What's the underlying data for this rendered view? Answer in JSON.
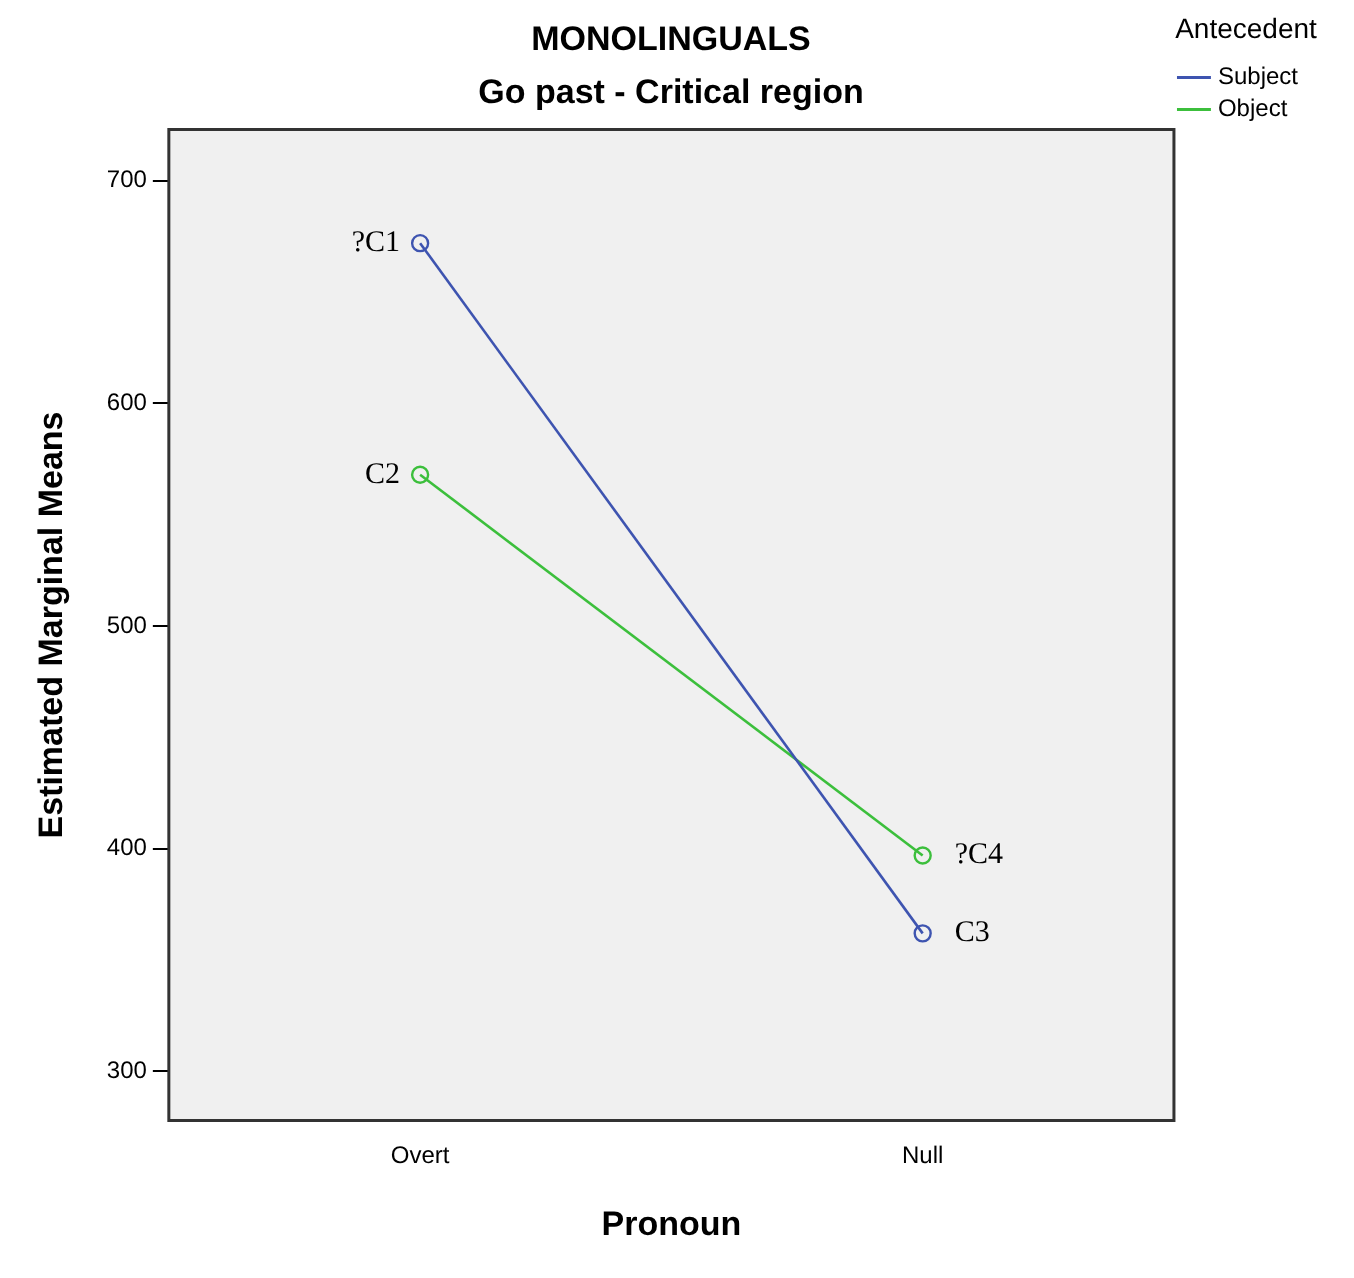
{
  "chart_data": {
    "type": "line",
    "title": "MONOLINGUALS",
    "subtitle": "Go past - Critical region",
    "xlabel": "Pronoun",
    "ylabel": "Estimated Marginal Means",
    "legend_title": "Antecedent",
    "categories": [
      "Overt",
      "Null"
    ],
    "series": [
      {
        "name": "Subject",
        "color": "#3e54b0",
        "values": [
          672,
          362
        ]
      },
      {
        "name": "Object",
        "color": "#3cbf3c",
        "values": [
          568,
          397
        ]
      }
    ],
    "ylim": [
      278,
      723
    ],
    "yticks": [
      300,
      400,
      500,
      600,
      700
    ],
    "grid": false,
    "legend": "right",
    "marker": "circle",
    "line_style": "solid",
    "annotations": [
      {
        "text": "?C1",
        "x": "Overt",
        "y": 672
      },
      {
        "text": "C2",
        "x": "Overt",
        "y": 568
      },
      {
        "text": "?C4",
        "x": "Null",
        "y": 397
      },
      {
        "text": "C3",
        "x": "Null",
        "y": 362
      }
    ]
  }
}
